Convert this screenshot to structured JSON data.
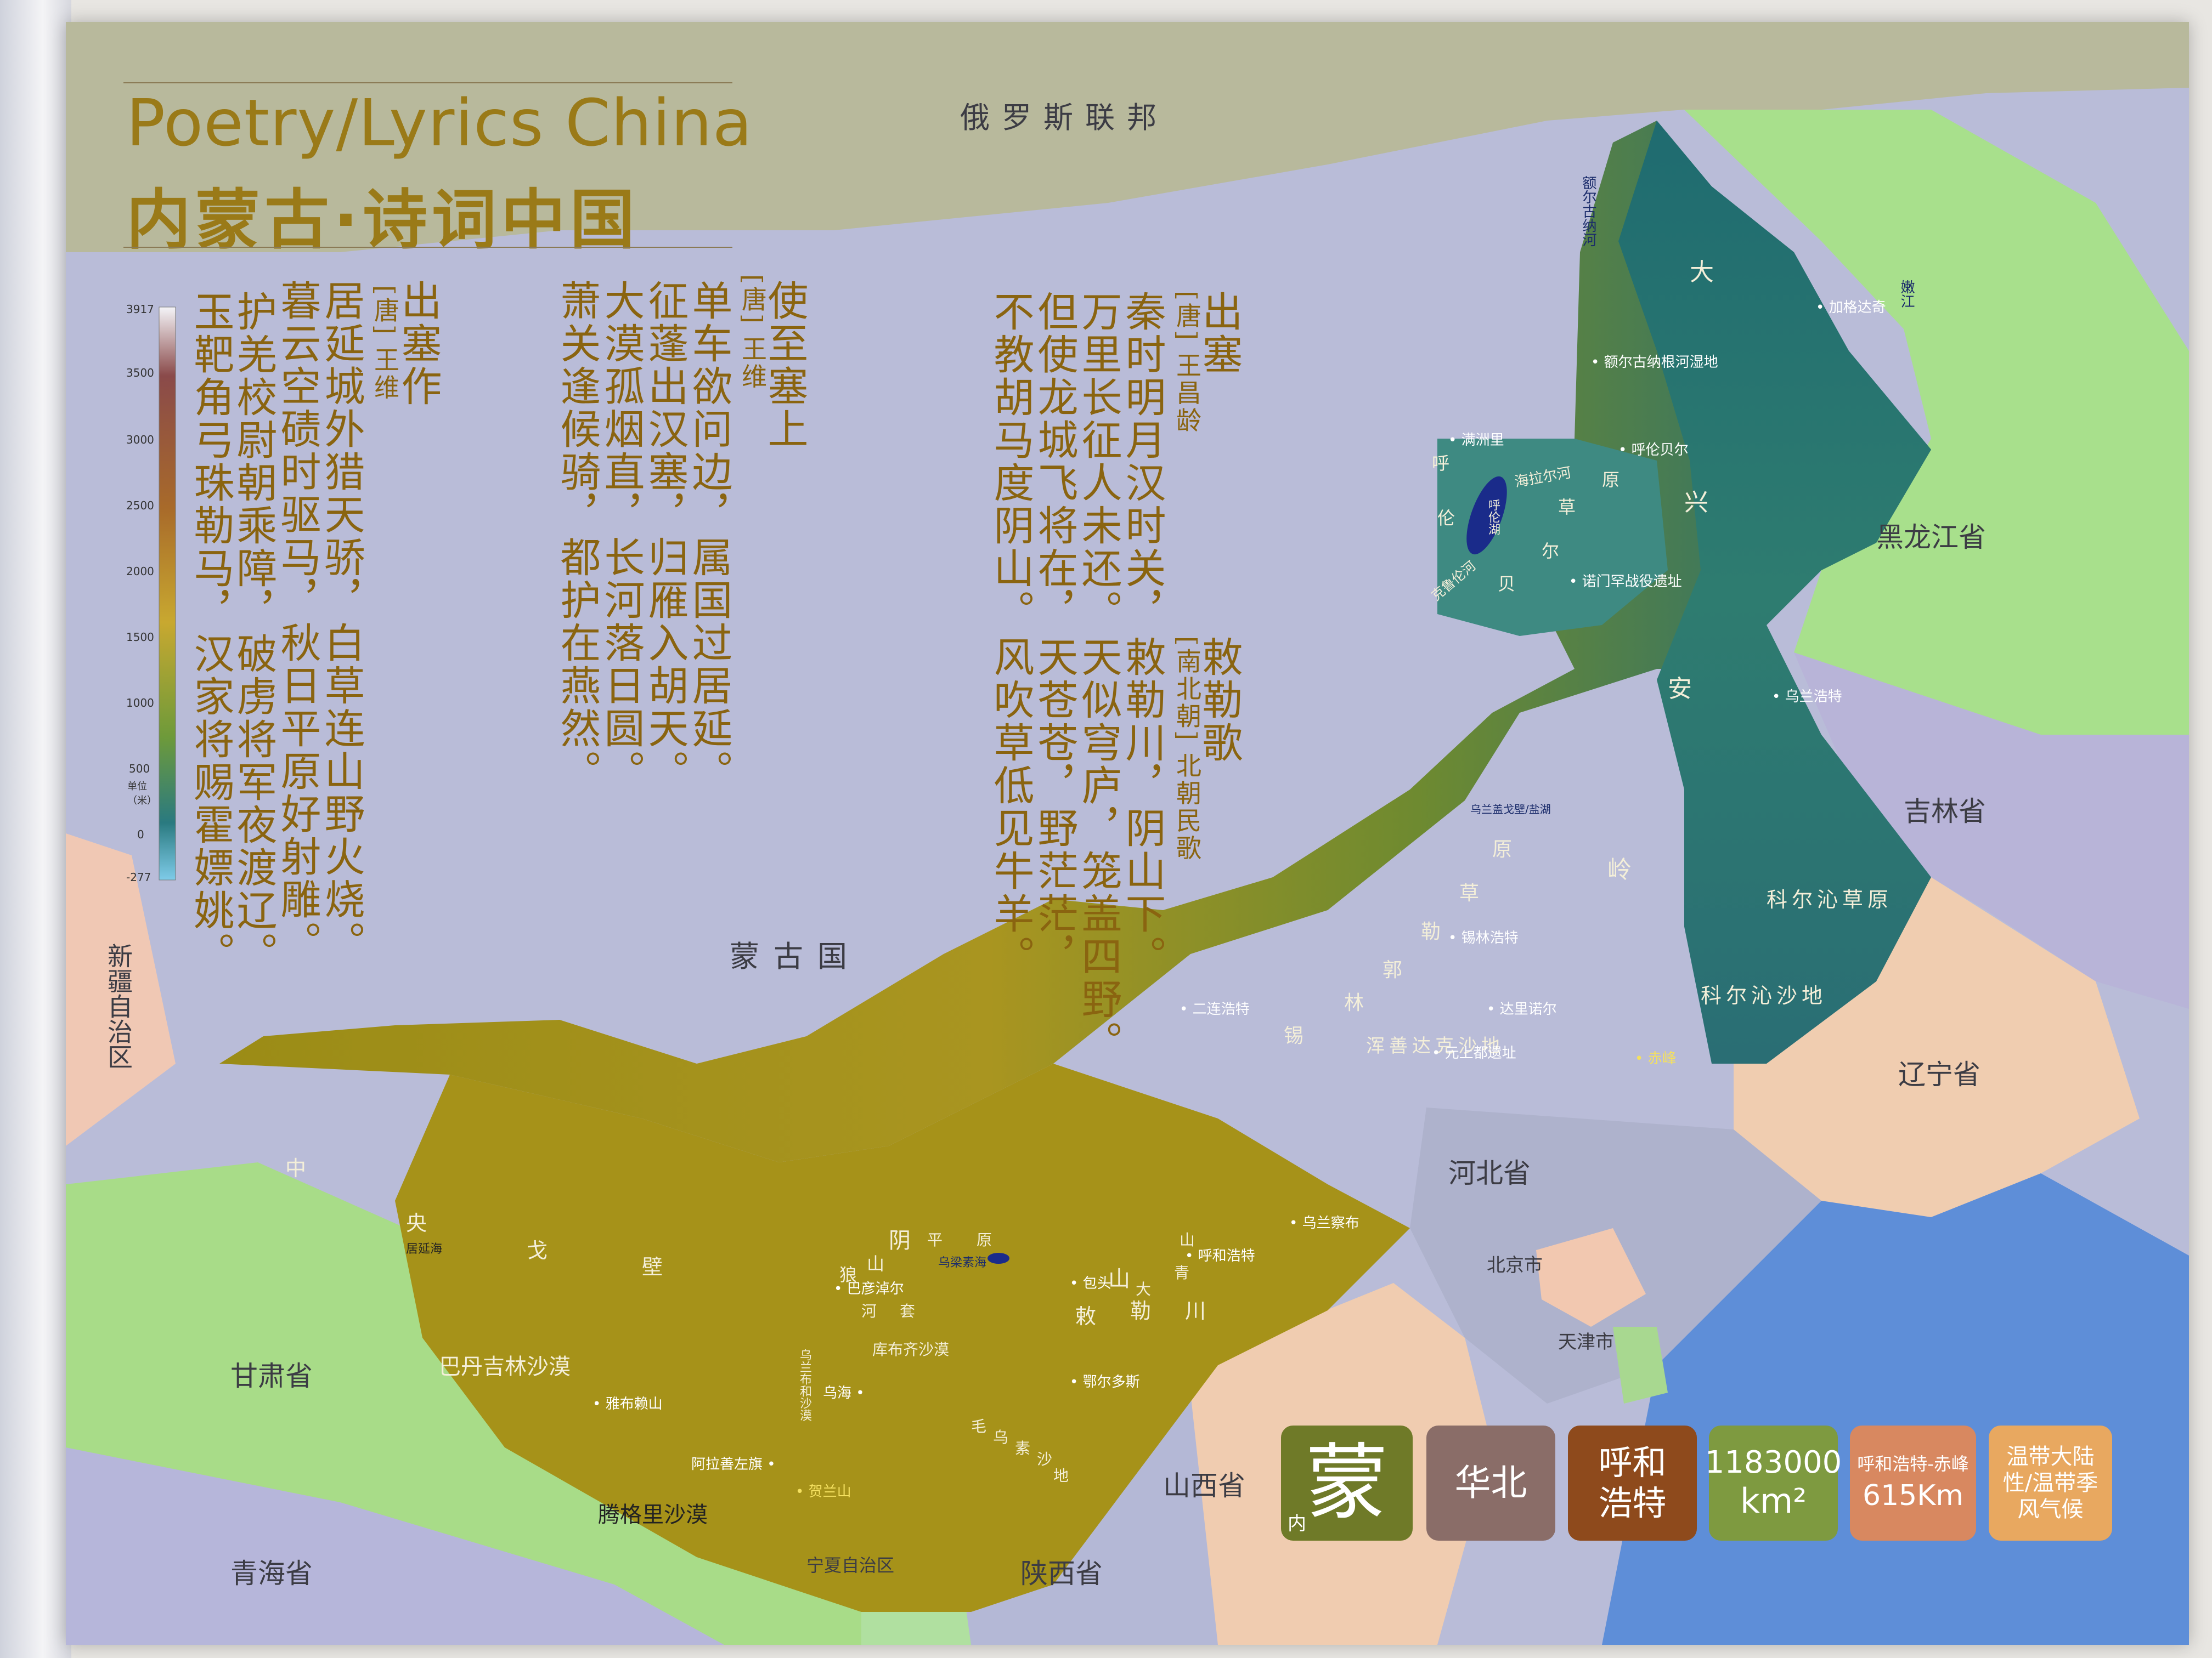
{
  "title": {
    "en": "Poetry/Lyrics China",
    "zh": "内蒙古·诗词中国"
  },
  "poems": [
    {
      "title": "出塞作",
      "author": "[唐] 王维",
      "lines": [
        "居延城外猎天骄，白草连山野火烧。",
        "暮云空碛时驱马，秋日平原好射雕。",
        "护羌校尉朝乘障，破虏将军夜渡辽。",
        "玉靶角弓珠勒马，汉家将赐霍嫖姚。"
      ]
    },
    {
      "title": "使至塞上",
      "author": "[唐] 王维",
      "lines": [
        "单车欲问边，属国过居延。",
        "征蓬出汉塞，归雁入胡天。",
        "大漠孤烟直，长河落日圆。",
        "萧关逢候骑，都护在燕然。"
      ]
    },
    {
      "title": "出塞",
      "author": "[唐] 王昌龄",
      "lines": [
        "秦时明月汉时关，",
        "万里长征人未还。",
        "但使龙城飞将在，",
        "不教胡马度阴山。"
      ]
    },
    {
      "title": "敕勒歌",
      "author": "[南北朝] 北朝民歌",
      "lines": [
        "敕勒川，阴山下。",
        "天似穹庐，笼盖四野。",
        "天苍苍，野茫茫，",
        "风吹草低见牛羊。"
      ]
    }
  ],
  "legend": {
    "ticks": [
      "3917",
      "3500",
      "3000",
      "2500",
      "2000",
      "1500",
      "1000",
      "500",
      "0",
      "-277"
    ],
    "unit": "单位（米）"
  },
  "regions": {
    "russia": "俄罗斯联邦",
    "mongolia": "蒙古国",
    "heilongjiang": "黑龙江省",
    "jilin": "吉林省",
    "liaoning": "辽宁省",
    "hebei": "河北省",
    "beijing": "北京市",
    "tianjin": "天津市",
    "shanxi": "山西省",
    "shaanxi": "陕西省",
    "ningxia": "宁夏自治区",
    "gansu": "甘肃省",
    "qinghai": "青海省",
    "xinjiang": "新疆自治区"
  },
  "features": {
    "daxinganling": [
      "大",
      "兴",
      "安",
      "岭"
    ],
    "hulunbuir_grassland": [
      "呼",
      "伦",
      "贝",
      "尔",
      "草",
      "原"
    ],
    "xilingol_grassland": [
      "锡",
      "林",
      "郭",
      "勒",
      "草",
      "原"
    ],
    "horqin_grassland": "科尔沁草原",
    "horqin_sandland": "科尔沁沙地",
    "hunshandake": "浑善达克沙地",
    "badain_jaran": "巴丹吉林沙漠",
    "tengger": "腾格里沙漠",
    "kubuqi": "库布齐沙漠",
    "mu_us": [
      "毛",
      "乌",
      "素",
      "沙",
      "地"
    ],
    "gobi": [
      "中",
      "央",
      "戈",
      "壁"
    ],
    "yinshan": [
      "阴",
      "山"
    ],
    "daqingshan": [
      "大",
      "青",
      "山"
    ],
    "chile_river": [
      "敕",
      "勒",
      "川"
    ],
    "hetao": [
      "狼",
      "山"
    ],
    "hetao_plain": [
      "河",
      "套",
      "平",
      "原"
    ],
    "ergun_river": [
      "额",
      "尔",
      "古",
      "纳",
      "河"
    ],
    "nen_river": [
      "嫩",
      "江"
    ],
    "hailar_river": "海拉尔河",
    "kherlen": "克鲁伦河",
    "hulun_lake": "呼伦湖",
    "wuliangsu_lake": "乌梁素海",
    "juyan_lake": "居延海",
    "ulanbuh": "乌兰布和沙漠"
  },
  "places": [
    "加格达奇",
    "额尔古纳根河湿地",
    "满洲里",
    "呼伦贝尔",
    "诺门罕战役遗址",
    "乌兰浩特",
    "乌兰盖戈壁/盐湖",
    "锡林浩特",
    "二连浩特",
    "达里诺尔",
    "元上都遗址",
    "赤峰",
    "乌兰察布",
    "呼和浩特",
    "包头",
    "巴彦淖尔",
    "鄂尔多斯",
    "乌海",
    "雅布赖山",
    "阿拉善左旗",
    "贺兰山"
  ],
  "badges": [
    {
      "main": "蒙",
      "sub": "内",
      "color": "#6f7a28"
    },
    {
      "main": "华北",
      "color": "#8a6d68"
    },
    {
      "main": "呼和浩特",
      "color": "#8e4a1c"
    },
    {
      "main": "1183000",
      "unit": "km²",
      "color": "#7e9a40"
    },
    {
      "main": "呼和浩特-赤峰",
      "sub": "615Km",
      "color": "#d88860"
    },
    {
      "main": "温带大陆性/温带季风气候",
      "color": "#e8a860"
    }
  ]
}
